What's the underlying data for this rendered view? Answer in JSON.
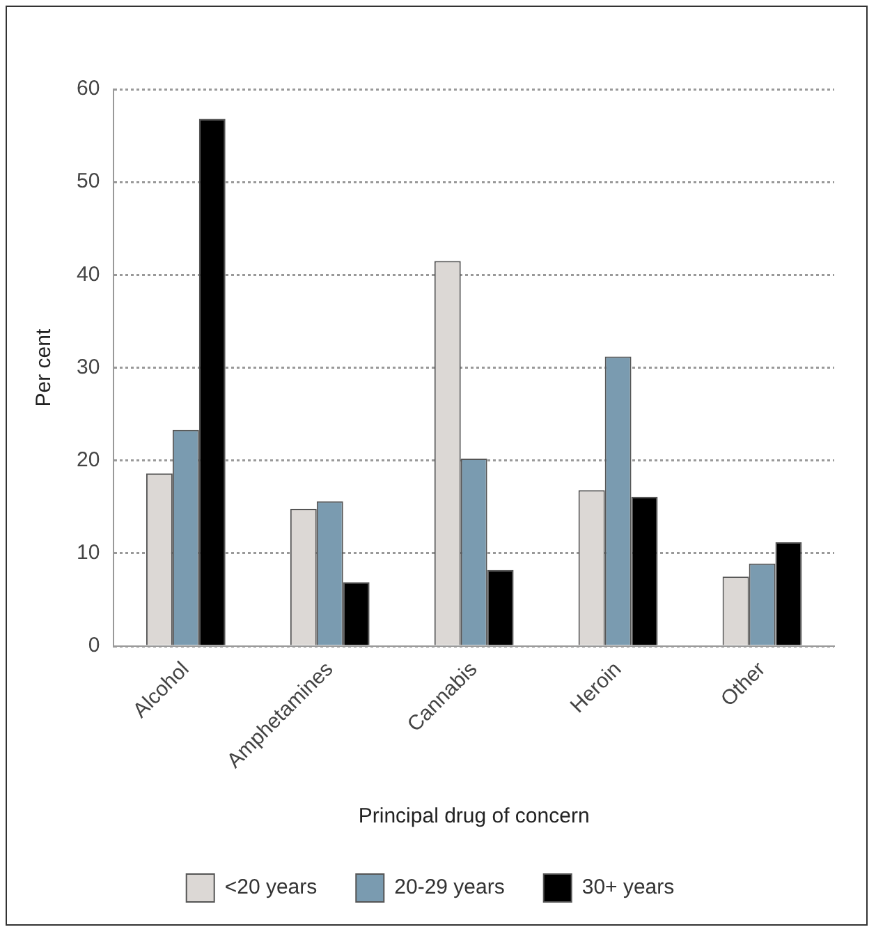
{
  "chart_data": {
    "type": "bar",
    "xlabel": "Principal drug of concern",
    "ylabel": "Per cent",
    "categories": [
      "Alcohol",
      "Amphetamines",
      "Cannabis",
      "Heroin",
      "Other"
    ],
    "series": [
      {
        "name": "<20 years",
        "color": "#dcd8d5",
        "values": [
          18.6,
          14.8,
          41.5,
          16.8,
          7.5
        ]
      },
      {
        "name": "20-29 years",
        "color": "#7a9bb0",
        "values": [
          23.3,
          15.6,
          20.2,
          31.2,
          8.9
        ]
      },
      {
        "name": "30+ years",
        "color": "#000000",
        "values": [
          56.8,
          6.9,
          8.2,
          16.1,
          11.2
        ]
      }
    ],
    "ylim": [
      0,
      60
    ],
    "yticks": [
      0,
      10,
      20,
      30,
      40,
      50,
      60
    ],
    "grid": "y",
    "legend": "bottom"
  }
}
